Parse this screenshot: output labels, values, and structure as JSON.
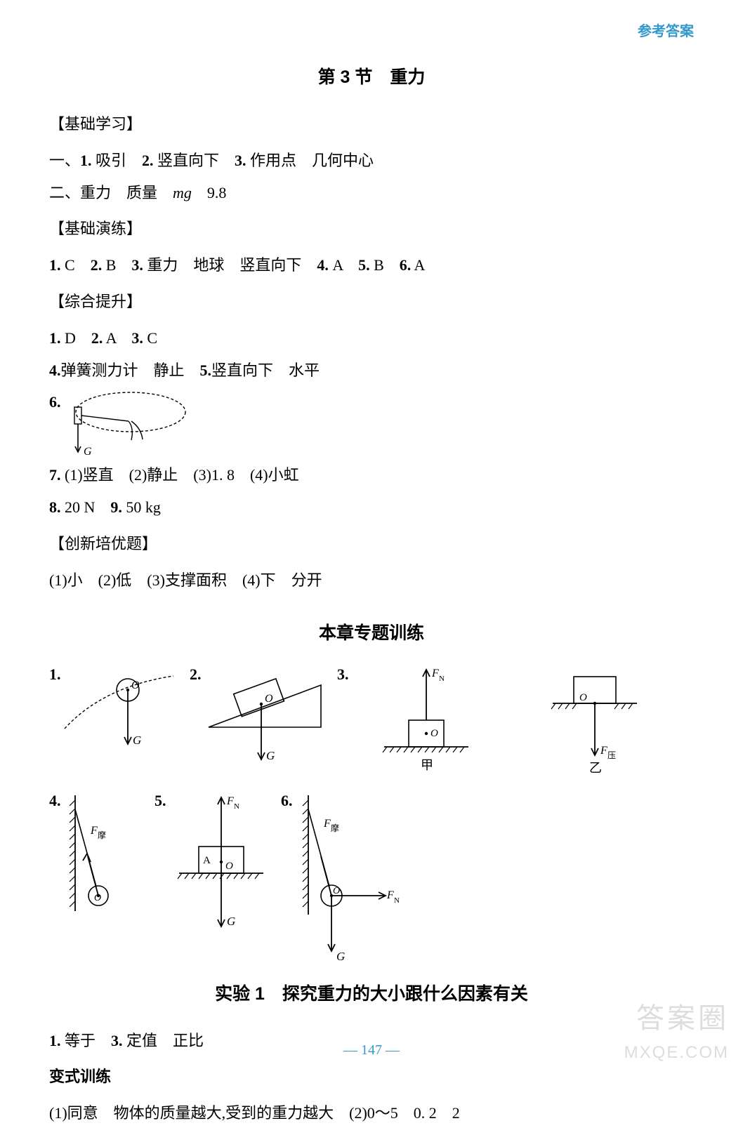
{
  "header": {
    "right_label": "参考答案"
  },
  "section3": {
    "title": "第 3 节　重力",
    "groups": [
      {
        "heading": "【基础学习】",
        "lines": [
          {
            "parts": [
              "一、",
              {
                "b": "1."
              },
              " 吸引　",
              {
                "b": "2."
              },
              " 竖直向下　",
              {
                "b": "3."
              },
              " 作用点　几何中心"
            ]
          },
          {
            "parts": [
              "二、重力　质量　",
              {
                "i": "mg"
              },
              "　9.8"
            ]
          }
        ]
      },
      {
        "heading": "【基础演练】",
        "lines": [
          {
            "parts": [
              {
                "b": "1."
              },
              " C　",
              {
                "b": "2."
              },
              " B　",
              {
                "b": "3."
              },
              " 重力　地球　竖直向下　",
              {
                "b": "4."
              },
              " A　",
              {
                "b": "5."
              },
              " B　",
              {
                "b": "6."
              },
              " A"
            ]
          }
        ]
      },
      {
        "heading": "【综合提升】",
        "lines": [
          {
            "parts": [
              {
                "b": "1."
              },
              " D　",
              {
                "b": "2."
              },
              " A　",
              {
                "b": "3."
              },
              " C"
            ]
          },
          {
            "parts": [
              {
                "b": "4."
              },
              "弹簧测力计　静止　",
              {
                "b": "5."
              },
              "竖直向下　水平"
            ]
          }
        ],
        "fig6_label": "6.",
        "line7": {
          "parts": [
            {
              "b": "7."
            },
            " (1)竖直　(2)静止　(3)1. 8　(4)小虹"
          ]
        },
        "line8": {
          "parts": [
            {
              "b": "8."
            },
            " 20 N　",
            {
              "b": "9."
            },
            " 50 kg"
          ]
        }
      },
      {
        "heading": "【创新培优题】",
        "lines": [
          {
            "parts": [
              "(1)小　(2)低　(3)支撑面积　(4)下　分开"
            ]
          }
        ]
      }
    ]
  },
  "chapter_training": {
    "title": "本章专题训练",
    "figs": {
      "row1": [
        "1.",
        "2.",
        "3."
      ],
      "row2": [
        "4.",
        "5.",
        "6."
      ],
      "labels": {
        "G": "G",
        "O": "O",
        "FN": "F",
        "FNsub": "N",
        "Fya": "F",
        "Fyasub": "压",
        "Fp": "F",
        "Fpsub": "摩",
        "A": "A",
        "jia": "甲",
        "yi": "乙"
      }
    }
  },
  "experiment1": {
    "title": "实验 1　探究重力的大小跟什么因素有关",
    "lines": [
      {
        "parts": [
          {
            "b": "1."
          },
          " 等于　",
          {
            "b": "3."
          },
          " 定值　正比"
        ]
      }
    ],
    "sub": "变式训练",
    "subline": {
      "parts": [
        "(1)同意　物体的质量越大,受到的重力越大　(2)0～5　0. 2　2"
      ]
    }
  },
  "page_number": "— 147 —",
  "watermarks": {
    "w1": "答案圈",
    "w2": "MXQE.COM"
  },
  "colors": {
    "accent": "#3399cc",
    "text": "#000000",
    "watermark": "#dddddd"
  }
}
